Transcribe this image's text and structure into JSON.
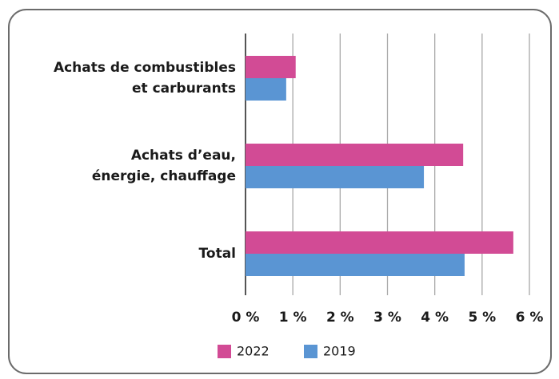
{
  "chart_data": {
    "type": "hbar",
    "categories": [
      [
        "Achats de combustibles",
        "et carburants"
      ],
      [
        "Achats d’eau,",
        "énergie, chauffage"
      ],
      [
        "Total"
      ]
    ],
    "series": [
      {
        "name": "2022",
        "color": "#d24b95",
        "values": [
          1.06,
          4.6,
          5.66
        ]
      },
      {
        "name": "2019",
        "color": "#5a95d3",
        "values": [
          0.86,
          3.77,
          4.63
        ]
      }
    ],
    "xlim": [
      0,
      6
    ],
    "xticks": [
      {
        "value": 0,
        "label": "0 %"
      },
      {
        "value": 1,
        "label": "1 %"
      },
      {
        "value": 2,
        "label": "2 %"
      },
      {
        "value": 3,
        "label": "3 %"
      },
      {
        "value": 4,
        "label": "4 %"
      },
      {
        "value": 5,
        "label": "5 %"
      },
      {
        "value": 6,
        "label": "6 %"
      }
    ],
    "grid": true
  }
}
